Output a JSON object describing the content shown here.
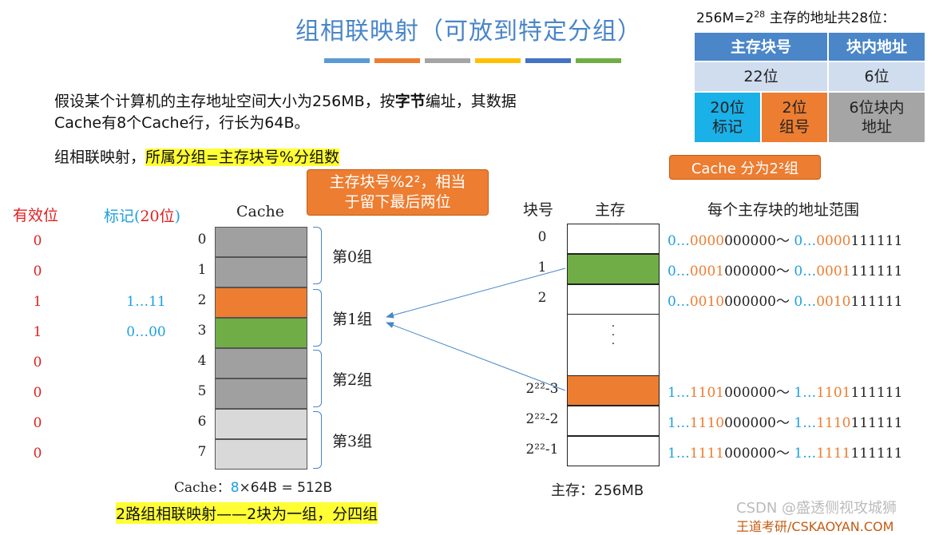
{
  "title": "组相联映射（可放到特定分组）",
  "color_bars": [
    "#5b9bd5",
    "#ed7d31",
    "#a5a5a5",
    "#ffc000",
    "#4472c4",
    "#70ad47"
  ],
  "address_note": {
    "prefix": "256M=2",
    "exp": "28",
    "suffix": " 主存的地址共28位："
  },
  "address_table": {
    "head_block": "主存块号",
    "head_offset": "块内地址",
    "bits_block": "22位",
    "bits_offset": "6位",
    "tag_label": "20位\n标记",
    "group_label": "2位\n组号",
    "offset_label": "6位块内\n地址"
  },
  "callout_groups": "Cache 分为2²组",
  "intro_pre": "假设某个计算机的主存地址空间大小为256MB，按",
  "intro_bold": "字节",
  "intro_post": "编址，其数据Cache有8个Cache行，行长为64B。",
  "mapping_prefix": "组相联映射，",
  "mapping_formula": "所属分组=主存块号%分组数",
  "callout_mod": "主存块号%2²，相当\n于留下最后两位",
  "headers": {
    "valid": "有效位",
    "tag_prefix": "标记(",
    "tag_count": "20位",
    "tag_suffix": ")",
    "cache": "Cache",
    "block_no": "块号",
    "memory": "主存",
    "range": "每个主存块的地址范围"
  },
  "cache_lines": [
    {
      "line": "0",
      "valid": "0",
      "tag": "",
      "color": "#a0a0a0"
    },
    {
      "line": "1",
      "valid": "0",
      "tag": "",
      "color": "#a0a0a0"
    },
    {
      "line": "2",
      "valid": "1",
      "tag": "1…11",
      "color": "#ed7d31"
    },
    {
      "line": "3",
      "valid": "1",
      "tag": "0…00",
      "color": "#70ad47"
    },
    {
      "line": "4",
      "valid": "0",
      "tag": "",
      "color": "#a0a0a0"
    },
    {
      "line": "5",
      "valid": "0",
      "tag": "",
      "color": "#a0a0a0"
    },
    {
      "line": "6",
      "valid": "0",
      "tag": "",
      "color": "#d9d9d9"
    },
    {
      "line": "7",
      "valid": "0",
      "tag": "",
      "color": "#d9d9d9"
    }
  ],
  "groups": [
    "第0组",
    "第1组",
    "第2组",
    "第3组"
  ],
  "memory_blocks": [
    {
      "no": "0",
      "color": "#ffffff",
      "range": {
        "a1": "0…",
        "a2": "0000",
        "a3": "000000～ ",
        "b1": "0…",
        "b2": "0000",
        "b3": "111111"
      }
    },
    {
      "no": "1",
      "color": "#70ad47",
      "range": {
        "a1": "0…",
        "a2": "0001",
        "a3": "000000～ ",
        "b1": "0…",
        "b2": "0001",
        "b3": "111111"
      }
    },
    {
      "no": "2",
      "color": "#ffffff",
      "range": {
        "a1": "0…",
        "a2": "0010",
        "a3": "000000～ ",
        "b1": "0…",
        "b2": "0010",
        "b3": "111111"
      }
    },
    {
      "no": "2²²-3",
      "color": "#ed7d31",
      "range": {
        "a1": "1…",
        "a2": "1101",
        "a3": "000000～ ",
        "b1": "1…",
        "b2": "1101",
        "b3": "111111"
      }
    },
    {
      "no": "2²²-2",
      "color": "#ffffff",
      "range": {
        "a1": "1…",
        "a2": "1110",
        "a3": "000000～ ",
        "b1": "1…",
        "b2": "1110",
        "b3": "111111"
      }
    },
    {
      "no": "2²²-1",
      "color": "#ffffff",
      "range": {
        "a1": "1…",
        "a2": "1111",
        "a3": "000000～ ",
        "b1": "1…",
        "b2": "1111",
        "b3": "111111"
      }
    }
  ],
  "ellipsis": "·\n·\n·",
  "cache_caption": {
    "prefix": "Cache：",
    "count": "8",
    "rest": "×64B = 512B"
  },
  "memory_caption": "主存：256MB",
  "bottom_note": "2路组相联映射——2块为一组，分四组",
  "csdn_watermark": "CSDN @盛透侧视攻城狮",
  "wangdao": "王道考研/CSKAOYAN.COM"
}
